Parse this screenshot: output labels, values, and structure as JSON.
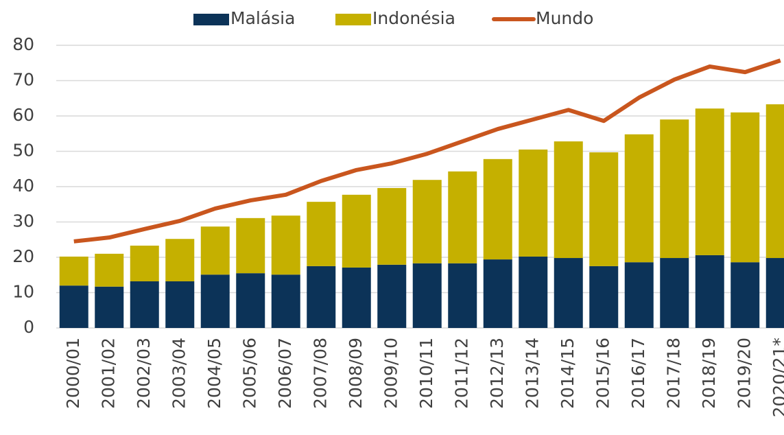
{
  "chart_data": {
    "type": "stacked_bar_line",
    "categories": [
      "2000/01",
      "2001/02",
      "2002/03",
      "2003/04",
      "2004/05",
      "2005/06",
      "2006/07",
      "2007/08",
      "2008/09",
      "2009/10",
      "2010/11",
      "2011/12",
      "2012/13",
      "2013/14",
      "2014/15",
      "2015/16",
      "2016/17",
      "2017/18",
      "2018/19",
      "2019/20",
      "2020/21*"
    ],
    "series": [
      {
        "name": "Malásia",
        "color": "#0c3358",
        "values": [
          12.0,
          11.7,
          13.2,
          13.2,
          15.1,
          15.5,
          15.1,
          17.5,
          17.1,
          17.9,
          18.3,
          18.3,
          19.4,
          20.2,
          19.8,
          17.5,
          18.6,
          19.8,
          20.6,
          18.6,
          19.8
        ]
      },
      {
        "name": "Indonésia",
        "color": "#c5b000",
        "values": [
          8.2,
          9.3,
          10.1,
          12.0,
          13.6,
          15.6,
          16.7,
          18.2,
          20.6,
          21.7,
          23.6,
          26.0,
          28.4,
          30.3,
          33.0,
          32.2,
          36.2,
          39.2,
          41.5,
          42.4,
          43.5
        ]
      },
      {
        "name": "Mundo",
        "color": "#c9561e",
        "type": "line",
        "values": [
          24.5,
          25.6,
          28.0,
          30.3,
          33.8,
          36.1,
          37.7,
          41.6,
          44.7,
          46.6,
          49.3,
          52.8,
          56.3,
          59.0,
          61.7,
          58.6,
          65.2,
          70.3,
          74.0,
          72.4,
          75.7
        ]
      }
    ],
    "ylim": [
      0,
      80
    ],
    "yticks": [
      0,
      10,
      20,
      30,
      40,
      50,
      60,
      70,
      80
    ],
    "grid": true,
    "legend": "top"
  }
}
